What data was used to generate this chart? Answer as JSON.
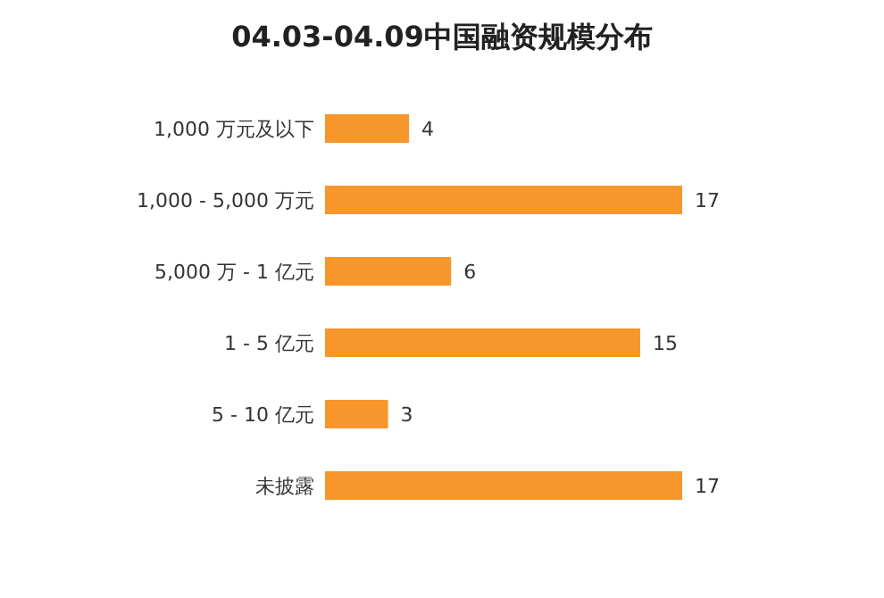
{
  "chart_data": {
    "type": "bar",
    "orientation": "horizontal",
    "title": "04.03-04.09中国融资规模分布",
    "categories": [
      "1,000 万元及以下",
      "1,000 - 5,000 万元",
      "5,000 万 - 1 亿元",
      "1 - 5 亿元",
      "5 - 10 亿元",
      "未披露"
    ],
    "values": [
      4,
      17,
      6,
      15,
      3,
      17
    ],
    "color": "#f7962a",
    "data_labels": true
  }
}
